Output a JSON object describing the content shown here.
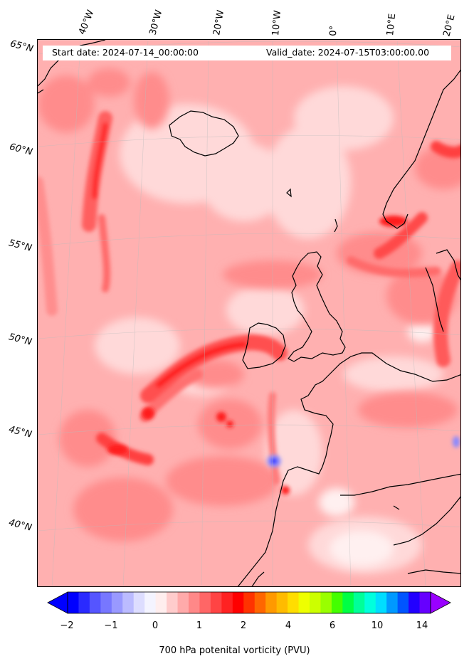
{
  "header": {
    "start_date": "Start date: 2024-07-14_00:00:00",
    "valid_date": "Valid_date: 2024-07-15T03:00:00.00"
  },
  "axes": {
    "lon_labels": [
      "40°W",
      "30°W",
      "20°W",
      "10°W",
      "0°",
      "10°E",
      "20°E"
    ],
    "lat_labels": [
      "65°N",
      "60°N",
      "55°N",
      "50°N",
      "45°N",
      "40°N"
    ]
  },
  "colorbar": {
    "ticks": [
      "−2",
      "−1",
      "0",
      "1",
      "2",
      "4",
      "6",
      "10",
      "14"
    ],
    "label": "700 hPa potenital vorticity (PVU)",
    "colors": [
      "#0000ff",
      "#2a2aff",
      "#5555ff",
      "#7777ff",
      "#9999ff",
      "#bbbbff",
      "#ddddff",
      "#f4f4ff",
      "#ffeeee",
      "#ffcccc",
      "#ffaaaa",
      "#ff8888",
      "#ff6666",
      "#ff4444",
      "#ff2222",
      "#ff0000",
      "#ff3300",
      "#ff6600",
      "#ff9900",
      "#ffbb00",
      "#ffdd00",
      "#eeff00",
      "#ccff00",
      "#99ff00",
      "#44ff00",
      "#00ff44",
      "#00ff99",
      "#00ffdd",
      "#00ddff",
      "#0099ff",
      "#0055ff",
      "#2200ff",
      "#6600ff"
    ],
    "extend_left_color": "#0000ff",
    "extend_right_color": "#9900ff"
  },
  "map": {
    "background_color": "#ffb0b0",
    "field_colors": {
      "light": "#ffd6d6",
      "medium": "#ff9a9a",
      "strong": "#ff6060",
      "max": "#ff1a1a",
      "negative": "#4a4aff"
    }
  }
}
